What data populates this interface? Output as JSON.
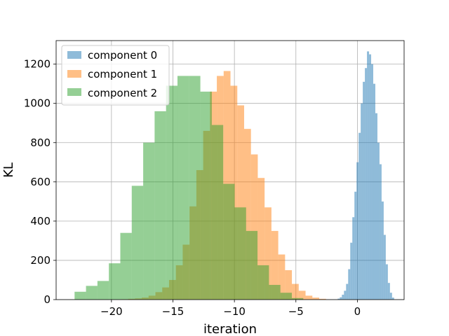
{
  "chart_data": {
    "type": "histogram",
    "title": "",
    "xlabel": "iteration",
    "ylabel": "KL",
    "xlim": [
      -24.5,
      3.8
    ],
    "ylim": [
      0,
      1320
    ],
    "xticks": [
      -20,
      -15,
      -10,
      -5,
      0
    ],
    "xtick_labels": [
      "−20",
      "−15",
      "−10",
      "−5",
      "0"
    ],
    "yticks": [
      0,
      200,
      400,
      600,
      800,
      1000,
      1200
    ],
    "ytick_labels": [
      "0",
      "200",
      "400",
      "600",
      "800",
      "1000",
      "1200"
    ],
    "grid": true,
    "legend_position": "top-left",
    "series": [
      {
        "name": "component 0",
        "color": "#1f77b4",
        "alpha": 0.5,
        "bin_start": -1.6,
        "bin_width": 0.17,
        "counts": [
          5,
          12,
          25,
          45,
          80,
          155,
          290,
          420,
          550,
          700,
          850,
          1000,
          1110,
          1180,
          1265,
          1250,
          1200,
          1100,
          950,
          800,
          690,
          500,
          330,
          180,
          85,
          35,
          10
        ]
      },
      {
        "name": "component 1",
        "color": "#ff7f0e",
        "alpha": 0.5,
        "bin_start": -19.2,
        "bin_width": 0.555,
        "counts": [
          2,
          4,
          6,
          10,
          20,
          38,
          62,
          100,
          175,
          280,
          475,
          660,
          860,
          1060,
          1140,
          1165,
          1090,
          990,
          870,
          740,
          620,
          470,
          350,
          230,
          150,
          80,
          45,
          20,
          10,
          4
        ]
      },
      {
        "name": "component 2",
        "color": "#2ca02c",
        "alpha": 0.5,
        "bin_start": -23.0,
        "bin_width": 0.93,
        "counts": [
          40,
          70,
          95,
          185,
          340,
          580,
          800,
          960,
          1090,
          1140,
          1140,
          1060,
          890,
          590,
          470,
          350,
          175,
          75,
          35,
          8
        ]
      }
    ]
  }
}
